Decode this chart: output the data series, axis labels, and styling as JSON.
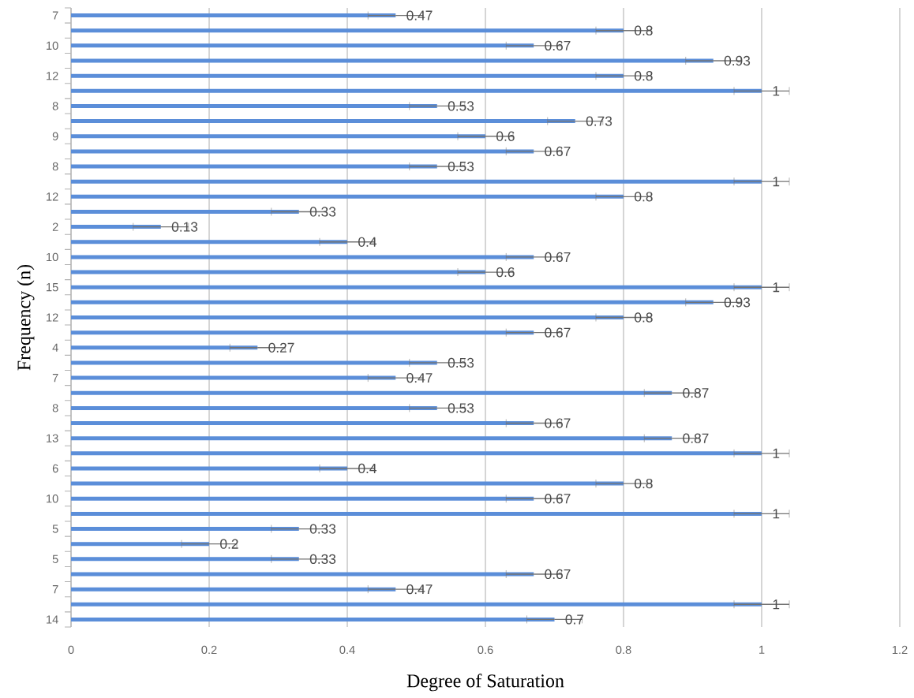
{
  "chart_data": {
    "type": "bar",
    "orientation": "horizontal",
    "xlabel": "Degree of Saturation",
    "ylabel": "Frequency (n)",
    "categories": [
      "7",
      null,
      "10",
      null,
      "12",
      null,
      "8",
      null,
      "9",
      null,
      "8",
      null,
      "12",
      null,
      "2",
      null,
      "10",
      null,
      "15",
      null,
      "12",
      null,
      "4",
      null,
      "7",
      null,
      "8",
      null,
      "13",
      null,
      "6",
      null,
      "10",
      null,
      "5",
      null,
      "5",
      null,
      "7",
      null,
      "14"
    ],
    "values": [
      0.47,
      0.8,
      0.67,
      0.93,
      0.8,
      1,
      0.53,
      0.73,
      0.6,
      0.67,
      0.53,
      1,
      0.8,
      0.33,
      0.13,
      0.4,
      0.67,
      0.6,
      1,
      0.93,
      0.8,
      0.67,
      0.27,
      0.53,
      0.47,
      0.87,
      0.53,
      0.67,
      0.87,
      1,
      0.4,
      0.8,
      0.67,
      1,
      0.33,
      0.2,
      0.33,
      0.67,
      0.47,
      1,
      0.7
    ],
    "errors": [
      0.04,
      0.04,
      0.04,
      0.04,
      0.04,
      0.04,
      0.04,
      0.04,
      0.04,
      0.04,
      0.04,
      0.04,
      0.04,
      0.04,
      0.04,
      0.04,
      0.04,
      0.04,
      0.04,
      0.04,
      0.04,
      0.04,
      0.04,
      0.04,
      0.04,
      0.04,
      0.04,
      0.04,
      0.04,
      0.04,
      0.04,
      0.04,
      0.04,
      0.04,
      0.04,
      0.04,
      0.04,
      0.04,
      0.04,
      0.04,
      0.04
    ],
    "color": "#5b8ed9",
    "data_labels": true,
    "grid": "x",
    "xlim": [
      0,
      1.2
    ],
    "xticks": [
      0,
      0.2,
      0.4,
      0.6,
      0.8,
      1,
      1.2
    ]
  }
}
